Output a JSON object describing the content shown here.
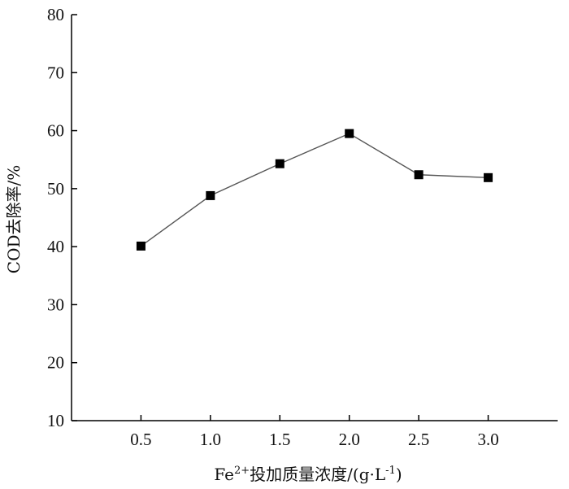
{
  "chart_data": {
    "type": "line",
    "x": [
      0.5,
      1.0,
      1.5,
      2.0,
      2.5,
      3.0
    ],
    "x_tick_labels": [
      "0.5",
      "1.0",
      "1.5",
      "2.0",
      "2.5",
      "3.0"
    ],
    "y_tick_labels": [
      "10",
      "20",
      "30",
      "40",
      "50",
      "60",
      "70",
      "80"
    ],
    "series": [
      {
        "values": [
          40.1,
          48.8,
          54.3,
          59.5,
          52.4,
          51.9
        ]
      }
    ],
    "xlabel": {
      "prefix": "Fe",
      "superscript": "2+",
      "main": "投加质量浓度/(g·L",
      "unit_superscript": "-1",
      "suffix": ")"
    },
    "ylabel": "COD去除率/%",
    "xlim": [
      0.0,
      3.5
    ],
    "ylim": [
      10,
      80
    ],
    "grid": false,
    "marker": "square",
    "line_color": "#555555",
    "marker_color": "#000000"
  }
}
